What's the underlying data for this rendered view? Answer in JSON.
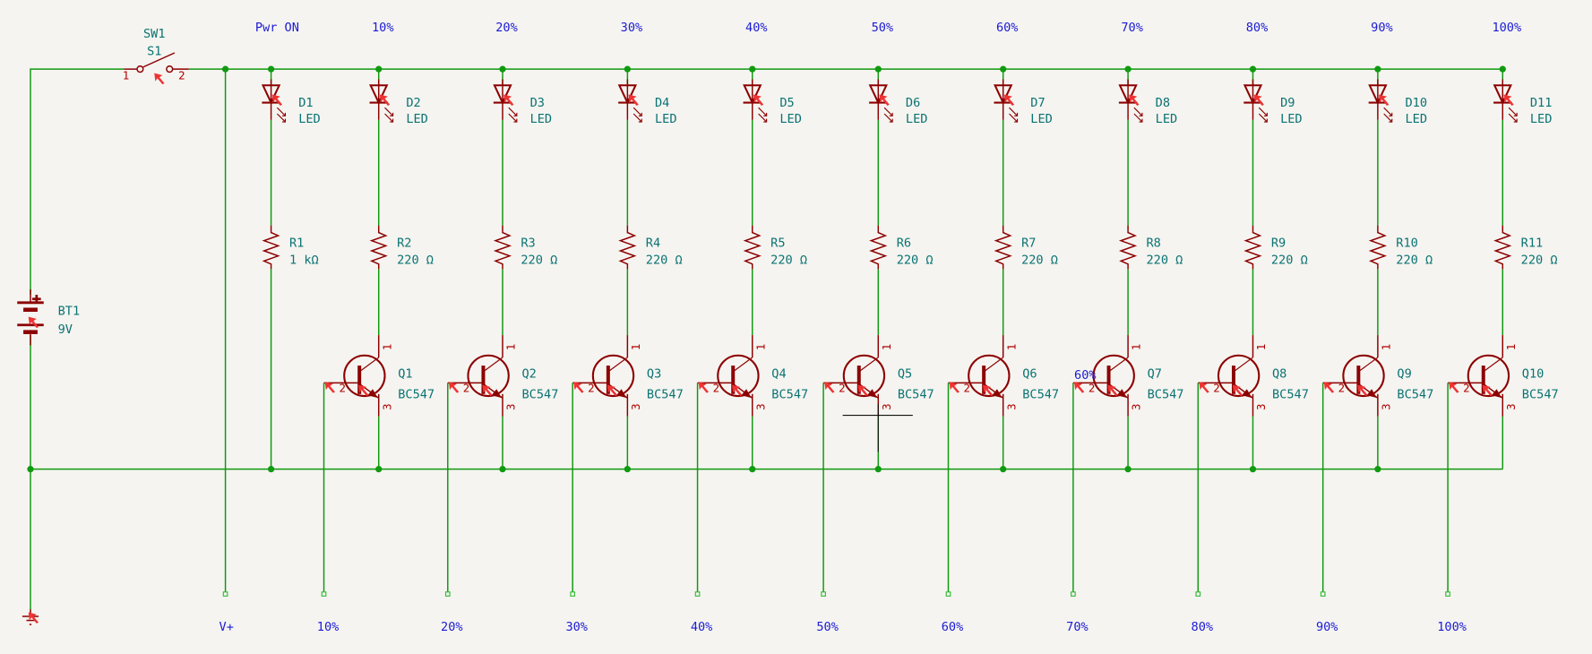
{
  "colors": {
    "background": "#f5f4f0",
    "wire": "#109910",
    "component": "#8c0000",
    "reference_text": "#0a7373",
    "net_label": "#1b1bd6"
  },
  "switch": {
    "ref": "SW1",
    "value": "S1",
    "pin1": "1",
    "pin2": "2"
  },
  "battery": {
    "ref": "BT1",
    "value": "9V",
    "plus": "+"
  },
  "power_label": {
    "top": "Pwr ON",
    "bottom": "V+"
  },
  "stray_label": "60%",
  "columns": [
    {
      "led": "D1",
      "led_value": "LED",
      "res": "R1",
      "res_value": "1 kΩ",
      "top_label": "",
      "q": "",
      "q_value": "",
      "bottom_label": ""
    },
    {
      "led": "D2",
      "led_value": "LED",
      "res": "R2",
      "res_value": "220 Ω",
      "top_label": "10%",
      "q": "Q1",
      "q_value": "BC547",
      "bottom_label": "10%"
    },
    {
      "led": "D3",
      "led_value": "LED",
      "res": "R3",
      "res_value": "220 Ω",
      "top_label": "20%",
      "q": "Q2",
      "q_value": "BC547",
      "bottom_label": "20%"
    },
    {
      "led": "D4",
      "led_value": "LED",
      "res": "R4",
      "res_value": "220 Ω",
      "top_label": "30%",
      "q": "Q3",
      "q_value": "BC547",
      "bottom_label": "30%"
    },
    {
      "led": "D5",
      "led_value": "LED",
      "res": "R5",
      "res_value": "220 Ω",
      "top_label": "40%",
      "q": "Q4",
      "q_value": "BC547",
      "bottom_label": "40%"
    },
    {
      "led": "D6",
      "led_value": "LED",
      "res": "R6",
      "res_value": "220 Ω",
      "top_label": "50%",
      "q": "Q5",
      "q_value": "BC547",
      "bottom_label": "50%"
    },
    {
      "led": "D7",
      "led_value": "LED",
      "res": "R7",
      "res_value": "220 Ω",
      "top_label": "60%",
      "q": "Q6",
      "q_value": "BC547",
      "bottom_label": "60%"
    },
    {
      "led": "D8",
      "led_value": "LED",
      "res": "R8",
      "res_value": "220 Ω",
      "top_label": "70%",
      "q": "Q7",
      "q_value": "BC547",
      "bottom_label": "70%"
    },
    {
      "led": "D9",
      "led_value": "LED",
      "res": "R9",
      "res_value": "220 Ω",
      "top_label": "80%",
      "q": "Q8",
      "q_value": "BC547",
      "bottom_label": "80%"
    },
    {
      "led": "D10",
      "led_value": "LED",
      "res": "R10",
      "res_value": "220 Ω",
      "top_label": "90%",
      "q": "Q9",
      "q_value": "BC547",
      "bottom_label": "90%"
    },
    {
      "led": "D11",
      "led_value": "LED",
      "res": "R11",
      "res_value": "220 Ω",
      "top_label": "100%",
      "q": "Q10",
      "q_value": "BC547",
      "bottom_label": "100%"
    }
  ],
  "transistor_pins": {
    "collector": "1",
    "base": "2",
    "emitter": "3"
  }
}
